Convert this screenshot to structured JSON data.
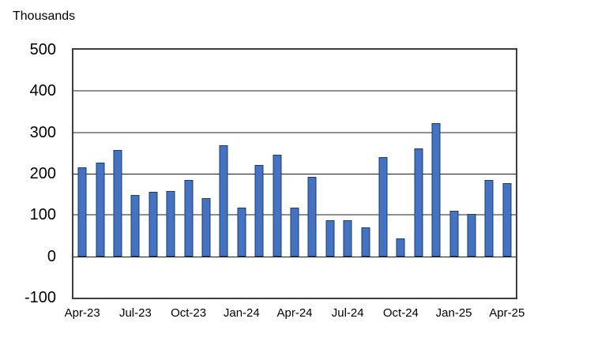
{
  "units_label": "Thousands",
  "chart_data": {
    "type": "bar",
    "title": "Thousands",
    "xlabel": "",
    "ylabel": "Thousands",
    "ylim": [
      -100,
      500
    ],
    "yticks": [
      500,
      400,
      300,
      200,
      100,
      0,
      -100
    ],
    "emphasized_gridlines": [
      200,
      0
    ],
    "grid": true,
    "legend": false,
    "xtick_labels": [
      "Apr-23",
      "Jul-23",
      "Oct-23",
      "Jan-24",
      "Apr-24",
      "Jul-24",
      "Oct-24",
      "Jan-25",
      "Apr-25"
    ],
    "xtick_step": 3,
    "categories": [
      "Apr-23",
      "May-23",
      "Jun-23",
      "Jul-23",
      "Aug-23",
      "Sep-23",
      "Oct-23",
      "Nov-23",
      "Dec-23",
      "Jan-24",
      "Feb-24",
      "Mar-24",
      "Apr-24",
      "May-24",
      "Jun-24",
      "Jul-24",
      "Aug-24",
      "Sep-24",
      "Oct-24",
      "Nov-24",
      "Dec-24",
      "Jan-25",
      "Feb-25",
      "Mar-25",
      "Apr-25"
    ],
    "values": [
      215,
      227,
      257,
      148,
      157,
      158,
      185,
      141,
      269,
      117,
      222,
      246,
      118,
      193,
      87,
      88,
      71,
      240,
      44,
      261,
      323,
      111,
      102,
      185,
      177
    ],
    "colors": {
      "bar_fill": "#4472c4",
      "bar_border": "#1e3a68",
      "gridline": "#909090",
      "gridline_dark": "#1a1a1a",
      "axis_border": "#3f3f3f",
      "text": "#000000"
    }
  }
}
